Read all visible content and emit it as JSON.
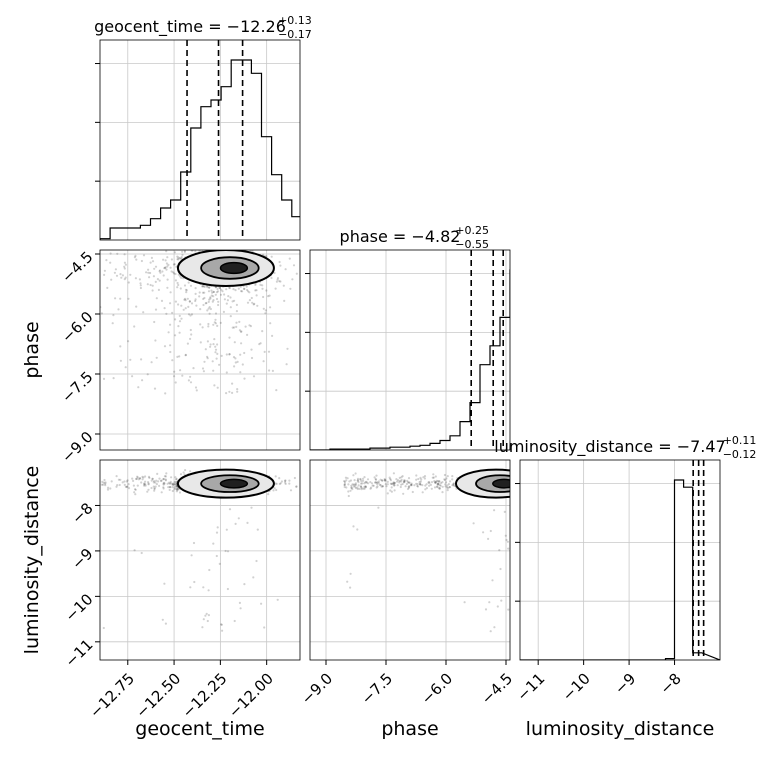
{
  "chart_data": {
    "type": "corner",
    "parameters": [
      "geocent_time",
      "phase",
      "luminosity_distance"
    ],
    "titles": [
      {
        "prefix": "geocent_time = −12.26",
        "sup": "+0.13",
        "sub": "−0.17"
      },
      {
        "prefix": "phase = −4.82",
        "sup": "+0.25",
        "sub": "−0.55"
      },
      {
        "prefix": "luminosity_distance = −7.47",
        "sup": "+0.11",
        "sub": "−0.12"
      }
    ],
    "ranges": {
      "geocent_time": [
        -12.9,
        -11.82
      ],
      "phase": [
        -9.4,
        -4.4
      ],
      "luminosity_distance": [
        -11.4,
        -7.0
      ]
    },
    "ticks": {
      "geocent_time": {
        "values": [
          -12.75,
          -12.5,
          -12.25,
          -12.0
        ],
        "labels": [
          "−12.75",
          "−12.50",
          "−12.25",
          "−12.00"
        ]
      },
      "phase": {
        "values": [
          -9.0,
          -7.5,
          -6.0,
          -4.5
        ],
        "labels": [
          "−9.0",
          "−7.5",
          "−6.0",
          "−4.5"
        ]
      },
      "luminosity_distance": {
        "values": [
          -11,
          -10,
          -9,
          -8
        ],
        "labels": [
          "−11",
          "−10",
          "−9",
          "−8"
        ]
      }
    },
    "quantiles": {
      "geocent_time": [
        -12.43,
        -12.26,
        -12.13
      ],
      "phase": [
        -5.37,
        -4.82,
        -4.57
      ],
      "luminosity_distance": [
        -7.59,
        -7.47,
        -7.36
      ]
    },
    "histograms": {
      "geocent_time": {
        "edges_start": -12.9,
        "bin_width": 0.0545,
        "counts": [
          2,
          18,
          18,
          18,
          22,
          32,
          48,
          60,
          102,
          168,
          200,
          210,
          230,
          270,
          270,
          250,
          155,
          98,
          60,
          35,
          18,
          7,
          3,
          2
        ]
      },
      "phase": {
        "edges_start": -9.4,
        "bin_width": 0.25,
        "counts": [
          0,
          0,
          1,
          1,
          1,
          1,
          2,
          2,
          3,
          3,
          4,
          5,
          7,
          10,
          15,
          30,
          50,
          90,
          110,
          140,
          190
        ]
      },
      "luminosity_distance": {
        "edges_start": -11.4,
        "bin_width": 0.2,
        "counts": [
          0,
          0,
          0,
          0,
          0,
          0,
          0,
          0,
          0,
          0,
          0,
          0,
          0,
          0,
          0,
          0,
          1,
          125,
          120,
          5
        ]
      }
    },
    "grid": true
  }
}
